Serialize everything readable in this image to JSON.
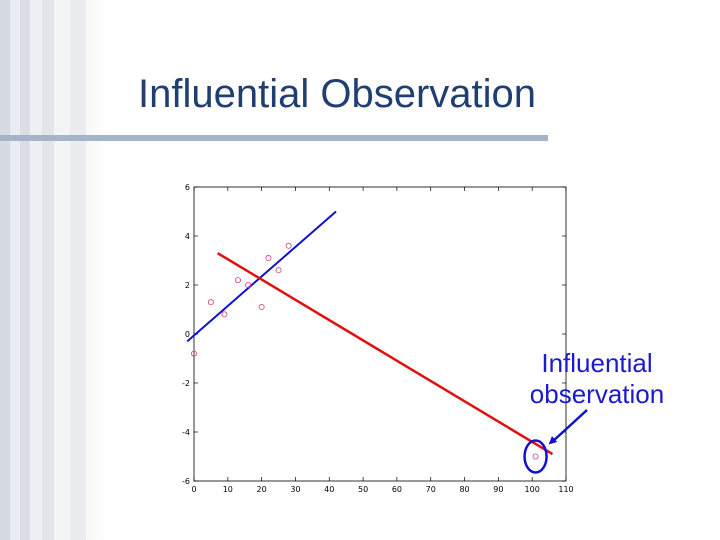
{
  "slide": {
    "title": "Influential Observation",
    "callout": "Influential observation"
  },
  "colors": {
    "title": "#1f3f72",
    "points": "#cc4488",
    "fit_all": "#e01010",
    "fit_without_outlier": "#1010d0",
    "highlight": "#1010d0"
  },
  "chart_data": {
    "type": "scatter",
    "xlim": [
      0,
      110
    ],
    "ylim": [
      -6,
      6
    ],
    "xticks": [
      0,
      10,
      20,
      30,
      40,
      50,
      60,
      70,
      80,
      90,
      100,
      110
    ],
    "yticks": [
      -6,
      -4,
      -2,
      0,
      2,
      4,
      6
    ],
    "grid": false,
    "points": [
      {
        "x": 0,
        "y": -0.8
      },
      {
        "x": 5,
        "y": 1.3
      },
      {
        "x": 9,
        "y": 0.8
      },
      {
        "x": 13,
        "y": 2.2
      },
      {
        "x": 16,
        "y": 2.0
      },
      {
        "x": 20,
        "y": 1.1
      },
      {
        "x": 22,
        "y": 3.1
      },
      {
        "x": 25,
        "y": 2.6
      },
      {
        "x": 28,
        "y": 3.6
      },
      {
        "x": 101,
        "y": -5.0
      }
    ],
    "lines": [
      {
        "x": [
          -2,
          42
        ],
        "y": [
          -0.3,
          5.0
        ]
      },
      {
        "x": [
          7,
          106
        ],
        "y": [
          3.3,
          -4.9
        ]
      }
    ],
    "highlighted_point": {
      "x": 101,
      "y": -5.0
    }
  }
}
